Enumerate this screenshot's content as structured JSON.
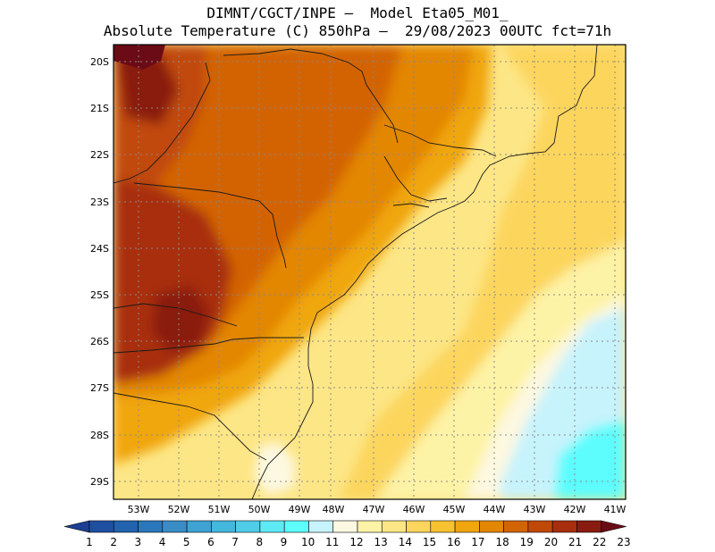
{
  "title_line1": "DIMNT/CGCT/INPE –  Model Eta05_M01_",
  "title_line2": "Absolute Temperature (C) 850hPa –  29/08/2023 00UTC fct=71h",
  "lat_labels": [
    "20S",
    "21S",
    "22S",
    "23S",
    "24S",
    "25S",
    "26S",
    "27S",
    "28S",
    "29S"
  ],
  "lon_labels": [
    "53W",
    "52W",
    "51W",
    "50W",
    "49W",
    "48W",
    "47W",
    "46W",
    "45W",
    "44W",
    "43W",
    "42W",
    "41W"
  ],
  "colorbar": {
    "labels": [
      "1",
      "2",
      "3",
      "4",
      "5",
      "6",
      "7",
      "8",
      "9",
      "10",
      "11",
      "12",
      "13",
      "14",
      "15",
      "16",
      "17",
      "18",
      "19",
      "20",
      "21",
      "22",
      "23"
    ],
    "colors": [
      "#1c3f93",
      "#1f4fa0",
      "#2363ad",
      "#2a77bb",
      "#3a8cc6",
      "#3ea2d2",
      "#43b8dc",
      "#4fcde8",
      "#5deaf5",
      "#5dfdfd",
      "#c7f3fc",
      "#fdf8e1",
      "#fdf3a6",
      "#fde686",
      "#fcd55d",
      "#f6c22f",
      "#f0a60c",
      "#e38604",
      "#d36403",
      "#c14907",
      "#a82e0d",
      "#8a1b10",
      "#6b0b15"
    ]
  }
}
